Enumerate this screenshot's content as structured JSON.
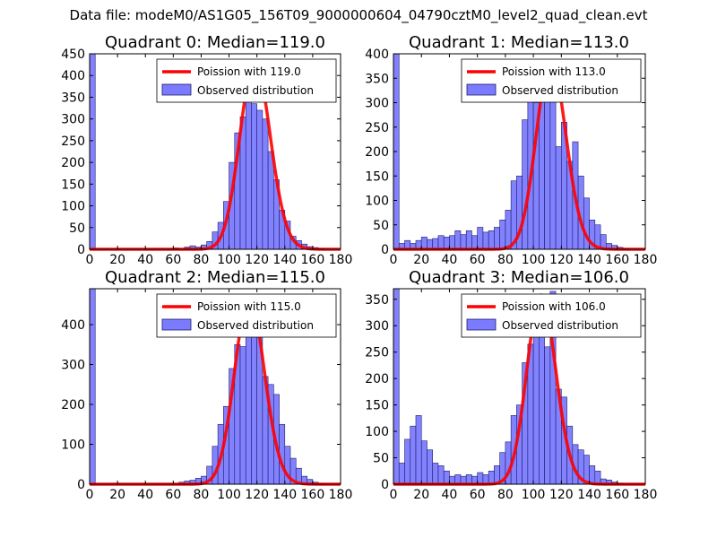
{
  "figure": {
    "suptitle": "Data file: modeM0/AS1G05_156T09_9000000604_04790cztM0_level2_quad_clean.evt"
  },
  "colors": {
    "hist_fill": "#7b7bff",
    "hist_edge": "#1d1d6b",
    "poisson": "#ff0000"
  },
  "chart_data": [
    {
      "type": "bar",
      "title": "Quadrant 0: Median=119.0",
      "legend": [
        "Poission with 119.0",
        "Observed distribution"
      ],
      "legend_position": "top-right",
      "median": 119.0,
      "bin_width": 4,
      "xlim": [
        0,
        180
      ],
      "ylim": [
        0,
        450
      ],
      "xticks": [
        0,
        20,
        40,
        60,
        80,
        100,
        120,
        140,
        160,
        180
      ],
      "yticks": [
        0,
        50,
        100,
        150,
        200,
        250,
        300,
        350,
        400,
        450
      ],
      "bin_starts": [
        0,
        4,
        8,
        12,
        16,
        20,
        24,
        28,
        32,
        36,
        40,
        44,
        48,
        52,
        56,
        60,
        64,
        68,
        72,
        76,
        80,
        84,
        88,
        92,
        96,
        100,
        104,
        108,
        112,
        116,
        120,
        124,
        128,
        132,
        136,
        140,
        144,
        148,
        152,
        156,
        160,
        164,
        168,
        172,
        176
      ],
      "values": [
        450,
        0,
        0,
        0,
        0,
        0,
        0,
        0,
        0,
        0,
        0,
        0,
        0,
        0,
        0,
        3,
        0,
        5,
        8,
        5,
        10,
        18,
        40,
        62,
        110,
        200,
        268,
        305,
        430,
        335,
        320,
        300,
        225,
        160,
        90,
        65,
        30,
        20,
        12,
        6,
        4,
        2,
        0,
        0,
        0
      ],
      "poisson_peak": 430
    },
    {
      "type": "bar",
      "title": "Quadrant 1: Median=113.0",
      "legend": [
        "Poission with 113.0",
        "Observed distribution"
      ],
      "legend_position": "top-right",
      "median": 113.0,
      "bin_width": 4,
      "xlim": [
        0,
        180
      ],
      "ylim": [
        0,
        400
      ],
      "xticks": [
        0,
        20,
        40,
        60,
        80,
        100,
        120,
        140,
        160,
        180
      ],
      "yticks": [
        0,
        50,
        100,
        150,
        200,
        250,
        300,
        350,
        400
      ],
      "bin_starts": [
        0,
        4,
        8,
        12,
        16,
        20,
        24,
        28,
        32,
        36,
        40,
        44,
        48,
        52,
        56,
        60,
        64,
        68,
        72,
        76,
        80,
        84,
        88,
        92,
        96,
        100,
        104,
        108,
        112,
        116,
        120,
        124,
        128,
        132,
        136,
        140,
        144,
        148,
        152,
        156,
        160,
        164,
        168,
        172,
        176
      ],
      "values": [
        400,
        12,
        18,
        12,
        18,
        25,
        20,
        22,
        28,
        25,
        28,
        38,
        30,
        38,
        28,
        45,
        35,
        38,
        45,
        60,
        80,
        140,
        150,
        265,
        360,
        300,
        310,
        325,
        375,
        210,
        260,
        180,
        220,
        150,
        105,
        60,
        50,
        30,
        12,
        8,
        4,
        2,
        0,
        0,
        0
      ],
      "poisson_peak": 385
    },
    {
      "type": "bar",
      "title": "Quadrant 2: Median=115.0",
      "legend": [
        "Poission with 115.0",
        "Observed distribution"
      ],
      "legend_position": "top-right",
      "median": 115.0,
      "bin_width": 4,
      "xlim": [
        0,
        180
      ],
      "ylim": [
        0,
        490
      ],
      "xticks": [
        0,
        20,
        40,
        60,
        80,
        100,
        120,
        140,
        160,
        180
      ],
      "yticks": [
        0,
        100,
        200,
        300,
        400
      ],
      "bin_starts": [
        0,
        4,
        8,
        12,
        16,
        20,
        24,
        28,
        32,
        36,
        40,
        44,
        48,
        52,
        56,
        60,
        64,
        68,
        72,
        76,
        80,
        84,
        88,
        92,
        96,
        100,
        104,
        108,
        112,
        116,
        120,
        124,
        128,
        132,
        136,
        140,
        144,
        148,
        152,
        156,
        160,
        164,
        168,
        172,
        176
      ],
      "values": [
        490,
        0,
        0,
        0,
        0,
        0,
        0,
        0,
        0,
        0,
        0,
        0,
        0,
        0,
        0,
        0,
        5,
        8,
        10,
        15,
        20,
        45,
        95,
        150,
        195,
        290,
        350,
        345,
        375,
        400,
        410,
        270,
        250,
        225,
        150,
        95,
        65,
        40,
        20,
        12,
        5,
        2,
        0,
        0,
        0
      ],
      "poisson_peak": 465
    },
    {
      "type": "bar",
      "title": "Quadrant 3: Median=106.0",
      "legend": [
        "Poission with 106.0",
        "Observed distribution"
      ],
      "legend_position": "top-right",
      "median": 106.0,
      "bin_width": 4,
      "xlim": [
        0,
        180
      ],
      "ylim": [
        0,
        370
      ],
      "xticks": [
        0,
        20,
        40,
        60,
        80,
        100,
        120,
        140,
        160,
        180
      ],
      "yticks": [
        0,
        50,
        100,
        150,
        200,
        250,
        300,
        350
      ],
      "bin_starts": [
        0,
        4,
        8,
        12,
        16,
        20,
        24,
        28,
        32,
        36,
        40,
        44,
        48,
        52,
        56,
        60,
        64,
        68,
        72,
        76,
        80,
        84,
        88,
        92,
        96,
        100,
        104,
        108,
        112,
        116,
        120,
        124,
        128,
        132,
        136,
        140,
        144,
        148,
        152,
        156,
        160,
        164,
        168,
        172,
        176
      ],
      "values": [
        370,
        40,
        85,
        110,
        130,
        82,
        65,
        40,
        35,
        25,
        15,
        18,
        15,
        18,
        15,
        22,
        18,
        25,
        35,
        60,
        80,
        130,
        150,
        230,
        265,
        295,
        320,
        260,
        365,
        180,
        165,
        110,
        75,
        65,
        55,
        35,
        25,
        10,
        8,
        4,
        2,
        0,
        0,
        0,
        0
      ],
      "poisson_peak": 358
    }
  ]
}
